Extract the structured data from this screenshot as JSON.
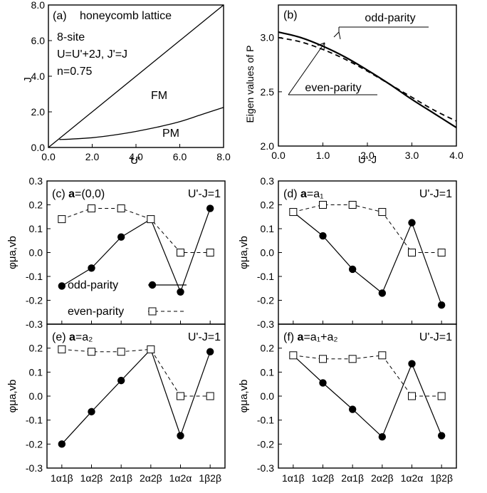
{
  "chart_data": [
    {
      "panel": "(a)",
      "type": "line",
      "title": "honeycomb lattice",
      "annotations": [
        "8-site",
        "U=U'+2J, J'=J",
        "n=0.75"
      ],
      "xlabel": "U'",
      "ylabel": "J",
      "xlim": [
        0,
        8
      ],
      "ylim": [
        0,
        8
      ],
      "xticks": [
        "0.0",
        "2.0",
        "4.0",
        "6.0",
        "8.0"
      ],
      "yticks": [
        "0.0",
        "2.0",
        "4.0",
        "6.0",
        "8.0"
      ],
      "regions": [
        "FM",
        "PM"
      ],
      "series": [
        {
          "x": [
            0,
            8
          ],
          "y": [
            0,
            8
          ]
        },
        {
          "x": [
            0.5,
            1,
            2,
            3,
            4,
            5,
            6,
            7,
            8
          ],
          "y": [
            0.45,
            0.47,
            0.55,
            0.7,
            0.9,
            1.15,
            1.45,
            1.85,
            2.25
          ]
        }
      ]
    },
    {
      "panel": "(b)",
      "type": "line",
      "xlabel": "U'-J",
      "ylabel": "Eigen values of P",
      "xlim": [
        0,
        4
      ],
      "ylim": [
        2,
        3.3
      ],
      "xticks": [
        "0.0",
        "1.0",
        "2.0",
        "3.0",
        "4.0"
      ],
      "yticks": [
        "2.0",
        "2.5",
        "3.0"
      ],
      "series": [
        {
          "name": "odd-parity",
          "x": [
            0,
            0.5,
            1,
            1.5,
            2,
            2.5,
            3,
            3.5,
            4
          ],
          "y": [
            3.05,
            3.0,
            2.92,
            2.82,
            2.7,
            2.57,
            2.43,
            2.3,
            2.17
          ]
        },
        {
          "name": "even-parity",
          "x": [
            0,
            0.5,
            1,
            1.5,
            2,
            2.5,
            3,
            3.5,
            4
          ],
          "y": [
            3.0,
            2.96,
            2.89,
            2.8,
            2.69,
            2.57,
            2.45,
            2.33,
            2.23
          ]
        }
      ]
    },
    {
      "panel": "(c)",
      "type": "line",
      "label_bold": "a",
      "label_rest": "=(0,0)",
      "note": "U'-J=1",
      "ylabel": "φμa,vb",
      "categories": [
        "1α1β",
        "1α2β",
        "2α1β",
        "2α2β",
        "1α2α",
        "1β2β"
      ],
      "ylim": [
        -0.3,
        0.3
      ],
      "yticks": [
        "0.3",
        "0.2",
        "0.1",
        "0.0",
        "-0.1",
        "-0.2",
        "-0.3"
      ],
      "legend": [
        "odd-parity",
        "even-parity"
      ],
      "series": [
        {
          "name": "odd-parity",
          "values": [
            -0.14,
            -0.065,
            0.065,
            0.14,
            -0.165,
            0.185
          ]
        },
        {
          "name": "even-parity",
          "values": [
            0.14,
            0.185,
            0.185,
            0.14,
            0.0,
            0.0
          ]
        }
      ]
    },
    {
      "panel": "(d)",
      "type": "line",
      "label_bold": "a",
      "label_rest": "=a₁",
      "note": "U'-J=1",
      "ylabel": "φμa,vb",
      "categories": [
        "1α1β",
        "1α2β",
        "2α1β",
        "2α2β",
        "1α2α",
        "1β2β"
      ],
      "ylim": [
        -0.3,
        0.3
      ],
      "yticks": [
        "0.3",
        "0.2",
        "0.1",
        "0.0",
        "-0.1",
        "-0.2",
        "-0.3"
      ],
      "series": [
        {
          "name": "odd-parity",
          "values": [
            0.17,
            0.07,
            -0.07,
            -0.17,
            0.125,
            -0.22
          ]
        },
        {
          "name": "even-parity",
          "values": [
            0.17,
            0.2,
            0.2,
            0.17,
            0.0,
            0.0
          ]
        }
      ]
    },
    {
      "panel": "(e)",
      "type": "line",
      "label_bold": "a",
      "label_rest": "=a₂",
      "note": "U'-J=1",
      "ylabel": "φμa,vb",
      "categories": [
        "1α1β",
        "1α2β",
        "2α1β",
        "2α2β",
        "1α2α",
        "1β2β"
      ],
      "ylim": [
        -0.3,
        0.3
      ],
      "yticks": [
        "0.2",
        "0.1",
        "0.0",
        "-0.1",
        "-0.2",
        "-0.3"
      ],
      "series": [
        {
          "name": "odd-parity",
          "values": [
            -0.2,
            -0.065,
            0.065,
            0.195,
            -0.165,
            0.185
          ]
        },
        {
          "name": "even-parity",
          "values": [
            0.195,
            0.185,
            0.185,
            0.195,
            0.0,
            0.0
          ]
        }
      ]
    },
    {
      "panel": "(f)",
      "type": "line",
      "label_bold": "a",
      "label_rest": "=a₁+a₂",
      "note": "U'-J=1",
      "ylabel": "φμa,vb",
      "categories": [
        "1α1β",
        "1α2β",
        "2α1β",
        "2α2β",
        "1α2α",
        "1β2β"
      ],
      "ylim": [
        -0.3,
        0.3
      ],
      "yticks": [
        "0.2",
        "0.1",
        "0.0",
        "-0.1",
        "-0.2",
        "-0.3"
      ],
      "series": [
        {
          "name": "odd-parity",
          "values": [
            0.17,
            0.055,
            -0.055,
            -0.17,
            0.135,
            -0.165
          ]
        },
        {
          "name": "even-parity",
          "values": [
            0.17,
            0.155,
            0.155,
            0.17,
            0.0,
            0.0
          ]
        }
      ]
    }
  ]
}
